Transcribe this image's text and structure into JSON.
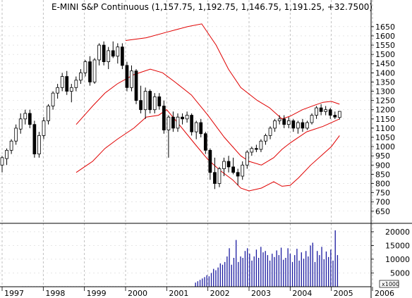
{
  "chart_data": [
    {
      "type": "candlestick",
      "title": "E-MINI S&P Continuous (1,157.75, 1,192.75, 1,146.75, 1,191.25, +32.7500)",
      "y_ticks": [
        650,
        700,
        750,
        800,
        850,
        900,
        950,
        1000,
        1050,
        1100,
        1150,
        1200,
        1250,
        1300,
        1350,
        1400,
        1450,
        1500,
        1550,
        1600,
        1650
      ],
      "ylim": [
        630,
        1680
      ],
      "x_labels": [
        "1997",
        "1998",
        "1999",
        "2000",
        "2001",
        "2002",
        "2003",
        "2004",
        "2005",
        "2006"
      ],
      "xlim": [
        1997.0,
        2006.0
      ],
      "grid": true,
      "bands": {
        "color": "#e00000",
        "upper": [
          [
            2000.0,
            1575
          ],
          [
            2000.5,
            1590
          ],
          [
            2001.0,
            1620
          ],
          [
            2001.5,
            1650
          ],
          [
            2001.85,
            1665
          ],
          [
            2002.2,
            1550
          ],
          [
            2002.5,
            1420
          ],
          [
            2002.8,
            1320
          ],
          [
            2003.2,
            1250
          ],
          [
            2003.5,
            1210
          ],
          [
            2003.8,
            1150
          ],
          [
            2004.0,
            1165
          ],
          [
            2004.3,
            1200
          ],
          [
            2004.6,
            1225
          ],
          [
            2004.8,
            1240
          ],
          [
            2005.0,
            1245
          ],
          [
            2005.2,
            1230
          ]
        ],
        "middle": [
          [
            1998.8,
            1120
          ],
          [
            1999.2,
            1220
          ],
          [
            1999.5,
            1290
          ],
          [
            1999.8,
            1340
          ],
          [
            2000.2,
            1390
          ],
          [
            2000.6,
            1420
          ],
          [
            2000.9,
            1400
          ],
          [
            2001.2,
            1350
          ],
          [
            2001.6,
            1280
          ],
          [
            2002.0,
            1170
          ],
          [
            2002.4,
            1050
          ],
          [
            2002.8,
            950
          ],
          [
            2003.0,
            920
          ],
          [
            2003.3,
            900
          ],
          [
            2003.6,
            940
          ],
          [
            2003.8,
            985
          ],
          [
            2004.0,
            1020
          ],
          [
            2004.4,
            1080
          ],
          [
            2004.8,
            1110
          ],
          [
            2005.2,
            1150
          ]
        ],
        "lower": [
          [
            1998.8,
            860
          ],
          [
            1999.2,
            920
          ],
          [
            1999.5,
            990
          ],
          [
            1999.8,
            1040
          ],
          [
            2000.2,
            1100
          ],
          [
            2000.5,
            1160
          ],
          [
            2000.8,
            1170
          ],
          [
            2001.0,
            1200
          ],
          [
            2001.3,
            1120
          ],
          [
            2001.7,
            1010
          ],
          [
            2002.0,
            930
          ],
          [
            2002.3,
            870
          ],
          [
            2002.6,
            820
          ],
          [
            2002.8,
            775
          ],
          [
            2003.0,
            760
          ],
          [
            2003.3,
            775
          ],
          [
            2003.6,
            810
          ],
          [
            2003.8,
            785
          ],
          [
            2004.0,
            790
          ],
          [
            2004.2,
            830
          ],
          [
            2004.5,
            900
          ],
          [
            2004.8,
            960
          ],
          [
            2005.0,
            1000
          ],
          [
            2005.2,
            1060
          ]
        ]
      },
      "candles": [
        {
          "o": 900,
          "h": 950,
          "l": 860,
          "c": 940
        },
        {
          "o": 935,
          "h": 990,
          "l": 900,
          "c": 980
        },
        {
          "o": 980,
          "h": 1040,
          "l": 960,
          "c": 1030
        },
        {
          "o": 1030,
          "h": 1120,
          "l": 1010,
          "c": 1100
        },
        {
          "o": 1095,
          "h": 1180,
          "l": 1070,
          "c": 1150
        },
        {
          "o": 1150,
          "h": 1200,
          "l": 1120,
          "c": 1180
        },
        {
          "o": 1180,
          "h": 1200,
          "l": 1100,
          "c": 1120
        },
        {
          "o": 1120,
          "h": 1140,
          "l": 940,
          "c": 960
        },
        {
          "o": 960,
          "h": 1080,
          "l": 940,
          "c": 1060
        },
        {
          "o": 1060,
          "h": 1160,
          "l": 1040,
          "c": 1140
        },
        {
          "o": 1140,
          "h": 1230,
          "l": 1120,
          "c": 1220
        },
        {
          "o": 1220,
          "h": 1300,
          "l": 1200,
          "c": 1290
        },
        {
          "o": 1290,
          "h": 1340,
          "l": 1260,
          "c": 1320
        },
        {
          "o": 1320,
          "h": 1400,
          "l": 1300,
          "c": 1380
        },
        {
          "o": 1380,
          "h": 1410,
          "l": 1280,
          "c": 1300
        },
        {
          "o": 1300,
          "h": 1340,
          "l": 1240,
          "c": 1320
        },
        {
          "o": 1320,
          "h": 1380,
          "l": 1300,
          "c": 1360
        },
        {
          "o": 1360,
          "h": 1420,
          "l": 1340,
          "c": 1400
        },
        {
          "o": 1400,
          "h": 1470,
          "l": 1380,
          "c": 1460
        },
        {
          "o": 1460,
          "h": 1490,
          "l": 1330,
          "c": 1350
        },
        {
          "o": 1350,
          "h": 1480,
          "l": 1340,
          "c": 1470
        },
        {
          "o": 1470,
          "h": 1560,
          "l": 1440,
          "c": 1550
        },
        {
          "o": 1550,
          "h": 1570,
          "l": 1440,
          "c": 1460
        },
        {
          "o": 1460,
          "h": 1540,
          "l": 1420,
          "c": 1520
        },
        {
          "o": 1520,
          "h": 1570,
          "l": 1480,
          "c": 1490
        },
        {
          "o": 1490,
          "h": 1560,
          "l": 1450,
          "c": 1540
        },
        {
          "o": 1540,
          "h": 1560,
          "l": 1420,
          "c": 1440
        },
        {
          "o": 1440,
          "h": 1460,
          "l": 1300,
          "c": 1320
        },
        {
          "o": 1320,
          "h": 1440,
          "l": 1300,
          "c": 1410
        },
        {
          "o": 1410,
          "h": 1420,
          "l": 1230,
          "c": 1250
        },
        {
          "o": 1250,
          "h": 1330,
          "l": 1180,
          "c": 1200
        },
        {
          "o": 1200,
          "h": 1320,
          "l": 1150,
          "c": 1300
        },
        {
          "o": 1300,
          "h": 1310,
          "l": 1180,
          "c": 1200
        },
        {
          "o": 1200,
          "h": 1290,
          "l": 1180,
          "c": 1270
        },
        {
          "o": 1270,
          "h": 1290,
          "l": 1200,
          "c": 1220
        },
        {
          "o": 1220,
          "h": 1250,
          "l": 1070,
          "c": 1090
        },
        {
          "o": 1090,
          "h": 1170,
          "l": 940,
          "c": 1160
        },
        {
          "o": 1160,
          "h": 1190,
          "l": 1080,
          "c": 1100
        },
        {
          "o": 1100,
          "h": 1180,
          "l": 1080,
          "c": 1160
        },
        {
          "o": 1160,
          "h": 1180,
          "l": 1120,
          "c": 1150
        },
        {
          "o": 1150,
          "h": 1190,
          "l": 1130,
          "c": 1170
        },
        {
          "o": 1170,
          "h": 1180,
          "l": 1060,
          "c": 1080
        },
        {
          "o": 1080,
          "h": 1140,
          "l": 1040,
          "c": 1130
        },
        {
          "o": 1130,
          "h": 1150,
          "l": 1050,
          "c": 1070
        },
        {
          "o": 1070,
          "h": 1080,
          "l": 960,
          "c": 980
        },
        {
          "o": 980,
          "h": 990,
          "l": 820,
          "c": 860
        },
        {
          "o": 860,
          "h": 940,
          "l": 770,
          "c": 800
        },
        {
          "o": 800,
          "h": 890,
          "l": 780,
          "c": 880
        },
        {
          "o": 880,
          "h": 940,
          "l": 840,
          "c": 920
        },
        {
          "o": 920,
          "h": 950,
          "l": 860,
          "c": 890
        },
        {
          "o": 890,
          "h": 940,
          "l": 850,
          "c": 860
        },
        {
          "o": 860,
          "h": 880,
          "l": 790,
          "c": 840
        },
        {
          "o": 840,
          "h": 920,
          "l": 820,
          "c": 900
        },
        {
          "o": 900,
          "h": 980,
          "l": 880,
          "c": 970
        },
        {
          "o": 970,
          "h": 1000,
          "l": 950,
          "c": 990
        },
        {
          "o": 990,
          "h": 1010,
          "l": 970,
          "c": 985
        },
        {
          "o": 985,
          "h": 1040,
          "l": 970,
          "c": 1030
        },
        {
          "o": 1030,
          "h": 1070,
          "l": 1010,
          "c": 1060
        },
        {
          "o": 1060,
          "h": 1110,
          "l": 1040,
          "c": 1100
        },
        {
          "o": 1100,
          "h": 1150,
          "l": 1080,
          "c": 1140
        },
        {
          "o": 1140,
          "h": 1170,
          "l": 1120,
          "c": 1150
        },
        {
          "o": 1150,
          "h": 1170,
          "l": 1100,
          "c": 1120
        },
        {
          "o": 1120,
          "h": 1160,
          "l": 1100,
          "c": 1140
        },
        {
          "o": 1140,
          "h": 1150,
          "l": 1080,
          "c": 1100
        },
        {
          "o": 1100,
          "h": 1140,
          "l": 1070,
          "c": 1130
        },
        {
          "o": 1130,
          "h": 1150,
          "l": 1080,
          "c": 1100
        },
        {
          "o": 1100,
          "h": 1140,
          "l": 1090,
          "c": 1130
        },
        {
          "o": 1130,
          "h": 1180,
          "l": 1120,
          "c": 1170
        },
        {
          "o": 1170,
          "h": 1220,
          "l": 1150,
          "c": 1210
        },
        {
          "o": 1210,
          "h": 1230,
          "l": 1170,
          "c": 1190
        },
        {
          "o": 1190,
          "h": 1220,
          "l": 1170,
          "c": 1200
        },
        {
          "o": 1200,
          "h": 1210,
          "l": 1150,
          "c": 1170
        },
        {
          "o": 1170,
          "h": 1190,
          "l": 1150,
          "c": 1160
        },
        {
          "o": 1158,
          "h": 1193,
          "l": 1147,
          "c": 1191
        }
      ],
      "x_start": 1997.0,
      "x_end": 2005.2
    },
    {
      "type": "bar",
      "y_ticks": [
        5000,
        10000,
        15000,
        20000
      ],
      "ylim": [
        0,
        21000
      ],
      "unit_label": "x1000",
      "volume_start": 2001.7,
      "volume_end": 2005.15,
      "values": [
        1500,
        2000,
        2500,
        3000,
        3500,
        4200,
        3800,
        5000,
        6500,
        6000,
        7000,
        8500,
        8000,
        9000,
        11000,
        14000,
        8000,
        10500,
        17000,
        9000,
        11000,
        10500,
        13000,
        14000,
        12000,
        9500,
        11000,
        13500,
        10500,
        14500,
        12500,
        13000,
        11500,
        9500,
        12000,
        10800,
        13200,
        11500,
        14200,
        9800,
        10500,
        14000,
        12000,
        9000,
        11500,
        13800,
        9500,
        12500,
        10200,
        13000,
        11000,
        15000,
        16000,
        9000,
        13000,
        11500,
        14500,
        10000,
        12800,
        10800,
        13500,
        9500,
        20500,
        11500
      ],
      "base_volume": 150
    }
  ]
}
